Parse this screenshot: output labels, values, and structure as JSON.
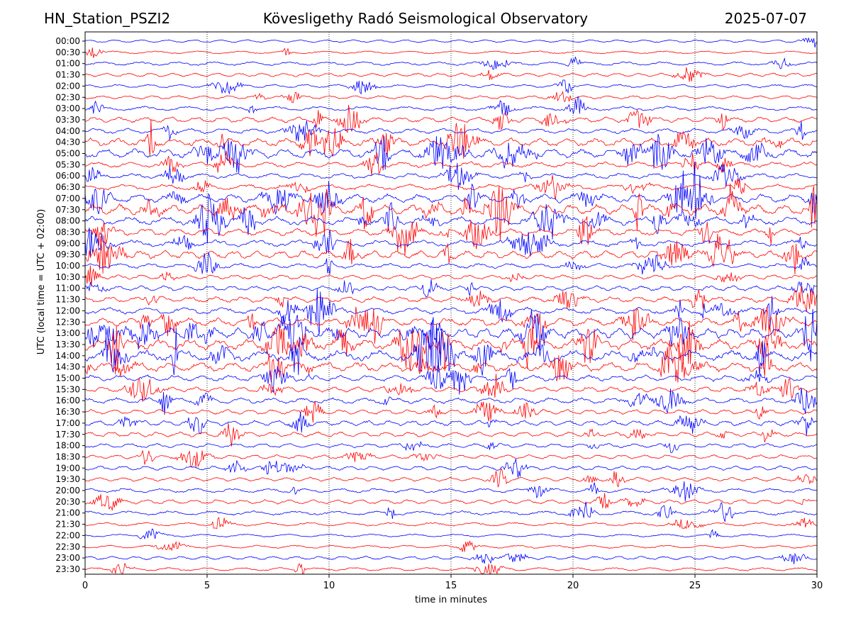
{
  "header": {
    "station": "HN_Station_PSZI2",
    "title": "Kövesligethy Radó Seismological Observatory",
    "date": "2025-07-07"
  },
  "chart_data": {
    "type": "line",
    "title": "Kövesligethy Radó Seismological Observatory",
    "xlabel": "time in minutes",
    "ylabel": "UTC (local time = UTC + 02:00)",
    "xlim": [
      0,
      30
    ],
    "xticks": [
      0,
      5,
      10,
      15,
      20,
      25,
      30
    ],
    "xtick_labels": [
      "0",
      "5",
      "10",
      "15",
      "20",
      "25",
      "30"
    ],
    "vertical_grid": true,
    "trace_colors": [
      "#0000ff",
      "#ff0000"
    ],
    "rows": [
      "00:00",
      "00:30",
      "01:00",
      "01:30",
      "02:00",
      "02:30",
      "03:00",
      "03:30",
      "04:00",
      "04:30",
      "05:00",
      "05:30",
      "06:00",
      "06:30",
      "07:00",
      "07:30",
      "08:00",
      "08:30",
      "09:00",
      "09:30",
      "10:00",
      "10:30",
      "11:00",
      "11:30",
      "12:00",
      "12:30",
      "13:00",
      "13:30",
      "14:00",
      "14:30",
      "15:00",
      "15:30",
      "16:00",
      "16:30",
      "17:00",
      "17:30",
      "18:00",
      "18:30",
      "19:00",
      "19:30",
      "20:00",
      "20:30",
      "21:00",
      "21:30",
      "22:00",
      "22:30",
      "23:00",
      "23:30"
    ],
    "row_activity": [
      0.1,
      0.12,
      0.22,
      0.2,
      0.18,
      0.18,
      0.3,
      0.42,
      0.38,
      0.7,
      0.85,
      0.45,
      0.4,
      0.45,
      0.75,
      1.0,
      0.75,
      0.6,
      0.55,
      0.7,
      0.35,
      0.3,
      0.35,
      0.45,
      0.55,
      0.75,
      0.95,
      1.0,
      1.0,
      0.85,
      0.5,
      0.4,
      0.45,
      0.35,
      0.4,
      0.35,
      0.28,
      0.25,
      0.28,
      0.25,
      0.28,
      0.3,
      0.28,
      0.2,
      0.14,
      0.14,
      0.18,
      0.18
    ]
  }
}
